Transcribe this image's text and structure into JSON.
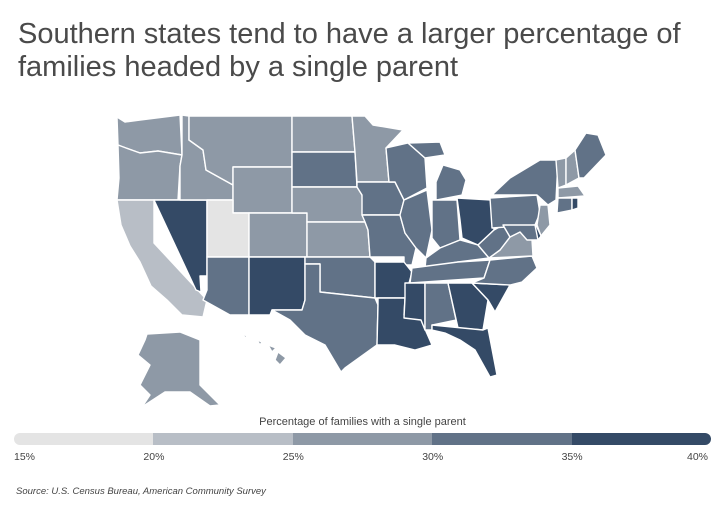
{
  "title": "Southern states tend to have a larger percentage of families headed by a single parent",
  "legend": {
    "title": "Percentage of families with a single parent",
    "ticks": [
      "15%",
      "20%",
      "25%",
      "30%",
      "35%",
      "40%"
    ],
    "bins": [
      {
        "range": [
          15,
          20
        ],
        "color": "#e4e4e4"
      },
      {
        "range": [
          20,
          25
        ],
        "color": "#b8bec6"
      },
      {
        "range": [
          25,
          30
        ],
        "color": "#8e99a6"
      },
      {
        "range": [
          30,
          35
        ],
        "color": "#617287"
      },
      {
        "range": [
          35,
          40
        ],
        "color": "#344a66"
      }
    ]
  },
  "source": "Source: U.S. Census Bureau, American Community Survey",
  "states": {
    "WA": 2,
    "OR": 2,
    "CA": 1,
    "NV": 4,
    "ID": 2,
    "MT": 2,
    "WY": 2,
    "UT": 0,
    "AZ": 3,
    "CO": 2,
    "NM": 4,
    "ND": 2,
    "SD": 3,
    "NE": 2,
    "KS": 2,
    "OK": 3,
    "TX": 3,
    "MN": 2,
    "IA": 3,
    "MO": 3,
    "AR": 4,
    "LA": 4,
    "WI": 3,
    "IL": 3,
    "MI": 3,
    "IN": 3,
    "OH": 4,
    "KY": 3,
    "TN": 3,
    "MS": 4,
    "AL": 3,
    "GA": 4,
    "FL": 4,
    "SC": 4,
    "NC": 3,
    "VA": 2,
    "WV": 3,
    "PA": 3,
    "NY": 3,
    "VT": 2,
    "NH": 2,
    "ME": 3,
    "MA": 2,
    "CT": 3,
    "RI": 4,
    "NJ": 2,
    "DE": 4,
    "MD": 3,
    "AK": 2,
    "HI": 2
  }
}
